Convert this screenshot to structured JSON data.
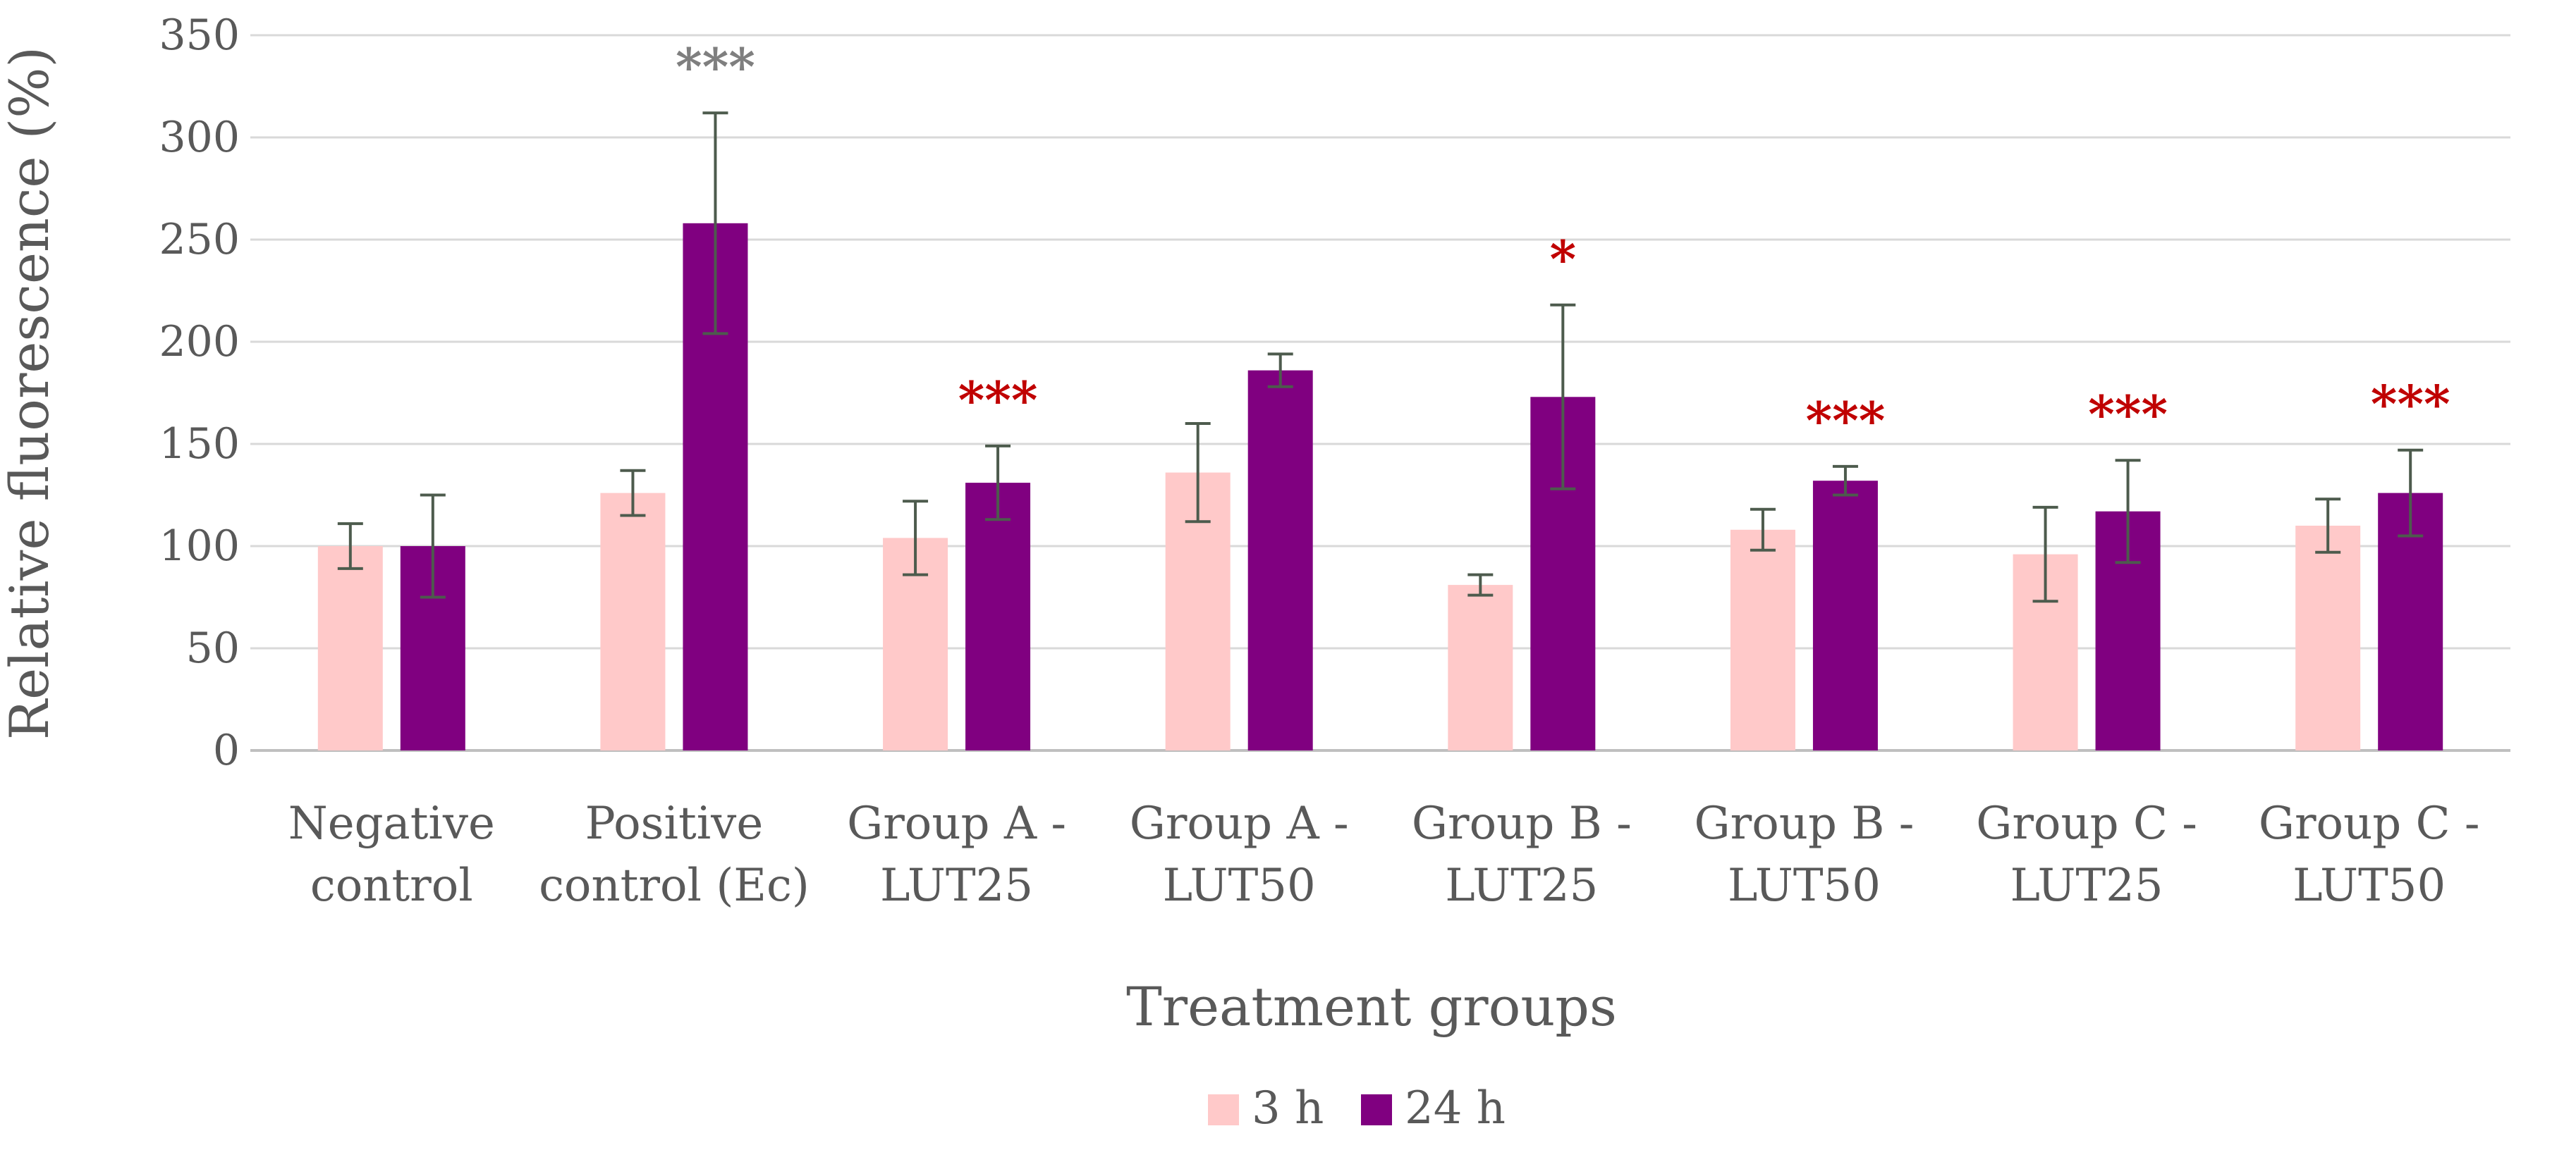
{
  "chart_data": {
    "type": "bar",
    "title": "",
    "xlabel": "Treatment groups",
    "ylabel": "Relative fluorescence (%)",
    "ylim": [
      0,
      350
    ],
    "yticks": [
      0,
      50,
      100,
      150,
      200,
      250,
      300,
      350
    ],
    "grid": true,
    "legend_position": "bottom",
    "categories": [
      [
        "Negative",
        "control"
      ],
      [
        "Positive",
        "control (Ec)"
      ],
      [
        "Group A -",
        "LUT25"
      ],
      [
        "Group A -",
        "LUT50"
      ],
      [
        "Group B -",
        "LUT25"
      ],
      [
        "Group B -",
        "LUT50"
      ],
      [
        "Group C -",
        "LUT25"
      ],
      [
        "Group C -",
        "LUT50"
      ]
    ],
    "series": [
      {
        "name": "3 h",
        "color": "#ffc9c9",
        "values": [
          100,
          126,
          104,
          136,
          81,
          108,
          96,
          110
        ],
        "errors": [
          11,
          11,
          18,
          24,
          5,
          10,
          23,
          13
        ]
      },
      {
        "name": "24 h",
        "color": "#800080",
        "values": [
          100,
          258,
          131,
          186,
          173,
          132,
          117,
          126
        ],
        "errors": [
          25,
          54,
          18,
          8,
          45,
          7,
          25,
          21
        ]
      }
    ],
    "error_bar_color": "#4d5b4d",
    "significance": [
      {
        "category_index": 1,
        "label": "***",
        "color": "#7f7f7f"
      },
      {
        "category_index": 2,
        "label": "***",
        "color": "#c00000"
      },
      {
        "category_index": 4,
        "label": "*",
        "color": "#c00000"
      },
      {
        "category_index": 5,
        "label": "***",
        "color": "#c00000"
      },
      {
        "category_index": 6,
        "label": "***",
        "color": "#c00000"
      },
      {
        "category_index": 7,
        "label": "***",
        "color": "#c00000"
      }
    ]
  }
}
